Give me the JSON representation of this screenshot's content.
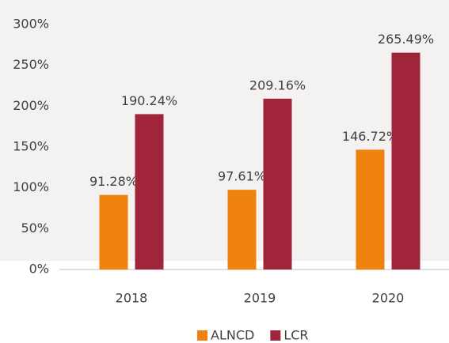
{
  "chart_data": {
    "type": "bar",
    "categories": [
      "2018",
      "2019",
      "2020"
    ],
    "series": [
      {
        "name": "ALNCD",
        "color": "#f0820f",
        "values": [
          91.28,
          97.61,
          146.72
        ],
        "value_labels": [
          "91.28%",
          "97.61%",
          "146.72%"
        ]
      },
      {
        "name": "LCR",
        "color": "#a0243a",
        "values": [
          190.24,
          209.16,
          265.49
        ],
        "value_labels": [
          "190.24%",
          "209.16%",
          "265.49%"
        ]
      }
    ],
    "ylim": [
      0,
      300
    ],
    "yticks": [
      {
        "value": 0,
        "label": "0%"
      },
      {
        "value": 50,
        "label": "50%"
      },
      {
        "value": 100,
        "label": "100%"
      },
      {
        "value": 150,
        "label": "150%"
      },
      {
        "value": 200,
        "label": "200%"
      },
      {
        "value": 250,
        "label": "250%"
      },
      {
        "value": 300,
        "label": "300%"
      }
    ],
    "legend": "bottom"
  }
}
